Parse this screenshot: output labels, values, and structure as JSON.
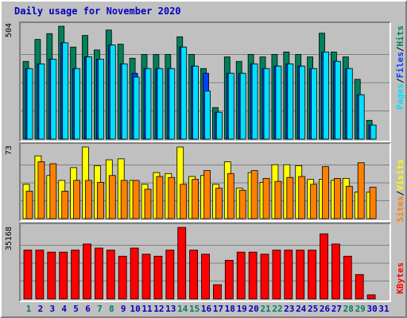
{
  "title": "Daily usage for November 2020",
  "colors": {
    "hits": "#00805c",
    "files": "#0040ff",
    "pages": "#00e0ff",
    "visits": "#ffff00",
    "sites": "#ff8000",
    "kbytes": "#ff0000",
    "weekend_label": "#00805c",
    "weekday_label": "#0000c0"
  },
  "legend": {
    "hits": "Hits",
    "files": "Files",
    "pages": "Pages",
    "slash": "/",
    "visits": "Visits",
    "sites": "Sites",
    "kbytes": "KBytes"
  },
  "chart_data": [
    {
      "type": "bar",
      "name": "hits-files-pages",
      "categories": [
        "1",
        "2",
        "3",
        "4",
        "5",
        "6",
        "7",
        "8",
        "9",
        "10",
        "11",
        "12",
        "13",
        "14",
        "15",
        "16",
        "17",
        "18",
        "19",
        "20",
        "21",
        "22",
        "23",
        "24",
        "25",
        "26",
        "27",
        "28",
        "29",
        "30",
        "31"
      ],
      "ymax_label": "504",
      "ylim": [
        0,
        504
      ],
      "series": [
        {
          "name": "Hits",
          "values": [
            347,
            445,
            471,
            504,
            411,
            463,
            398,
            487,
            424,
            361,
            378,
            378,
            378,
            457,
            378,
            315,
            141,
            367,
            347,
            378,
            367,
            378,
            389,
            378,
            367,
            473,
            389,
            367,
            267,
            84,
            0
          ]
        },
        {
          "name": "Files",
          "values": [
            315,
            336,
            357,
            430,
            315,
            367,
            357,
            420,
            336,
            294,
            315,
            315,
            315,
            411,
            326,
            294,
            120,
            294,
            294,
            336,
            315,
            326,
            336,
            326,
            315,
            389,
            347,
            315,
            198,
            63,
            0
          ]
        },
        {
          "name": "Pages",
          "values": [
            315,
            336,
            357,
            430,
            315,
            367,
            357,
            420,
            336,
            277,
            315,
            315,
            315,
            411,
            326,
            215,
            120,
            294,
            294,
            336,
            315,
            326,
            336,
            326,
            315,
            389,
            347,
            315,
            198,
            63,
            0
          ]
        }
      ]
    },
    {
      "type": "bar",
      "name": "visits-sites",
      "categories": [
        "1",
        "2",
        "3",
        "4",
        "5",
        "6",
        "7",
        "8",
        "9",
        "10",
        "11",
        "12",
        "13",
        "14",
        "15",
        "16",
        "17",
        "18",
        "19",
        "20",
        "21",
        "22",
        "23",
        "24",
        "25",
        "26",
        "27",
        "28",
        "29",
        "30",
        "31"
      ],
      "ymax_label": "73",
      "ylim": [
        0,
        73
      ],
      "series": [
        {
          "name": "Visits",
          "values": [
            35,
            64,
            44,
            39,
            52,
            73,
            54,
            60,
            61,
            39,
            35,
            47,
            46,
            73,
            43,
            44,
            35,
            58,
            31,
            47,
            37,
            55,
            55,
            54,
            40,
            40,
            39,
            41,
            27,
            27,
            0
          ]
        },
        {
          "name": "Sites",
          "values": [
            28,
            58,
            56,
            28,
            39,
            39,
            37,
            44,
            39,
            39,
            30,
            43,
            42,
            35,
            40,
            49,
            31,
            46,
            29,
            49,
            41,
            38,
            42,
            43,
            35,
            53,
            41,
            33,
            57,
            32,
            0
          ]
        }
      ]
    },
    {
      "type": "bar",
      "name": "kbytes",
      "categories": [
        "1",
        "2",
        "3",
        "4",
        "5",
        "6",
        "7",
        "8",
        "9",
        "10",
        "11",
        "12",
        "13",
        "14",
        "15",
        "16",
        "17",
        "18",
        "19",
        "20",
        "21",
        "22",
        "23",
        "24",
        "25",
        "26",
        "27",
        "28",
        "29",
        "30",
        "31"
      ],
      "ymax_label": "35168",
      "ylim": [
        0,
        35168
      ],
      "series": [
        {
          "name": "KBytes",
          "values": [
            24000,
            24000,
            23000,
            23000,
            24000,
            27000,
            25000,
            24000,
            21000,
            25000,
            22000,
            21000,
            24000,
            35168,
            24000,
            22000,
            7000,
            19000,
            23000,
            23000,
            22000,
            24000,
            24000,
            24000,
            24000,
            32000,
            27000,
            21000,
            12000,
            2000,
            0
          ]
        }
      ]
    }
  ],
  "weekend_days": [
    1,
    7,
    8,
    14,
    15,
    21,
    22,
    28,
    29
  ]
}
